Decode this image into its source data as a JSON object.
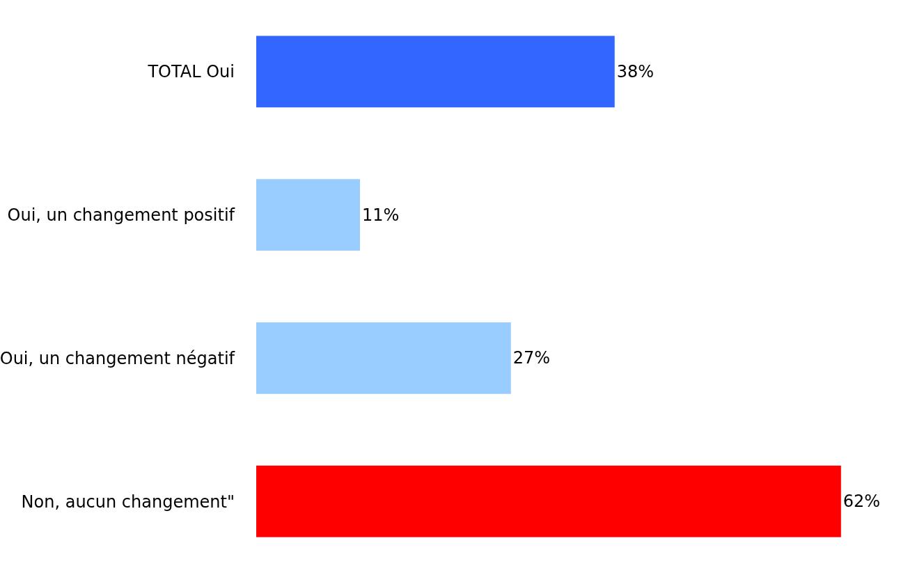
{
  "chart_data": {
    "type": "bar",
    "orientation": "horizontal",
    "categories": [
      "TOTAL Oui",
      "Oui, un changement positif",
      "Oui, un changement négatif",
      "Non, aucun changement\""
    ],
    "values": [
      38,
      11,
      27,
      62
    ],
    "colors": [
      "#3366ff",
      "#99ccff",
      "#99ccff",
      "#ff0000"
    ],
    "value_labels": [
      "38%",
      "11%",
      "27%",
      "62%"
    ]
  }
}
